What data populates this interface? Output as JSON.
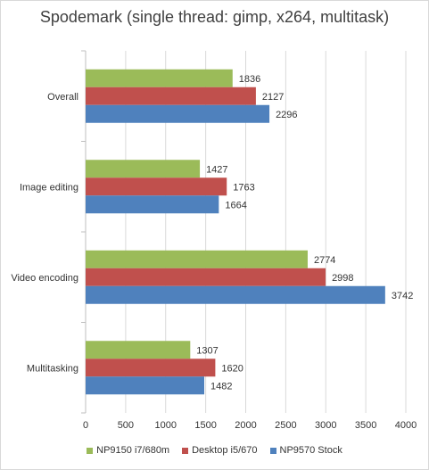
{
  "chart_data": {
    "type": "bar",
    "orientation": "horizontal",
    "title": "Spodemark (single thread: gimp, x264, multitask)",
    "categories": [
      "Overall",
      "Image editing",
      "Video encoding",
      "Multitasking"
    ],
    "series": [
      {
        "name": "NP9150 i7/680m",
        "color": "#9bbb59",
        "values": [
          1836,
          1427,
          2774,
          1307
        ]
      },
      {
        "name": "Desktop i5/670",
        "color": "#c0504d",
        "values": [
          2127,
          1763,
          2998,
          1620
        ]
      },
      {
        "name": "NP9570 Stock",
        "color": "#4f81bd",
        "values": [
          2296,
          1664,
          3742,
          1482
        ]
      }
    ],
    "xlim": [
      0,
      4000
    ],
    "xticks": [
      "0",
      "500",
      "1000",
      "1500",
      "2000",
      "2500",
      "3000",
      "3500",
      "4000"
    ],
    "grid": true,
    "legend_position": "bottom",
    "data_labels": true
  }
}
